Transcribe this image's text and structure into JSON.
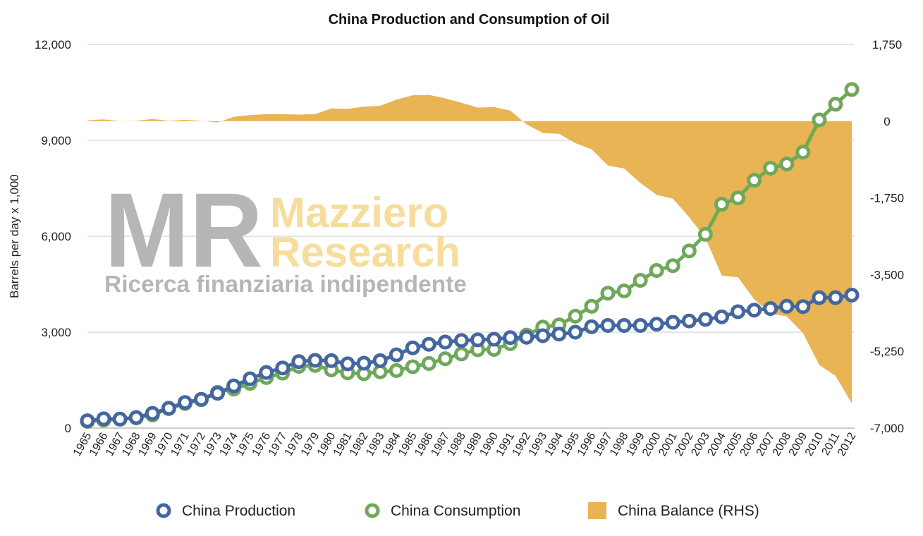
{
  "chart_data": {
    "type": "line",
    "title": "China Production and Consumption of Oil",
    "ylabel": "Barrels per day x 1,000",
    "ylim": [
      0,
      12000
    ],
    "y_ticks": [
      "0",
      "3,000",
      "6,000",
      "9,000",
      "12,000"
    ],
    "ylim_right": [
      -7000,
      1750
    ],
    "y2_ticks": [
      "-7,000",
      "-5,250",
      "-3,500",
      "-1,750",
      "0",
      "1,750"
    ],
    "categories": [
      "1965",
      "1966",
      "1967",
      "1968",
      "1969",
      "1970",
      "1971",
      "1972",
      "1973",
      "1974",
      "1975",
      "1976",
      "1977",
      "1978",
      "1979",
      "1980",
      "1981",
      "1982",
      "1983",
      "1984",
      "1985",
      "1986",
      "1987",
      "1988",
      "1989",
      "1990",
      "1991",
      "1992",
      "1993",
      "1994",
      "1995",
      "1996",
      "1997",
      "1998",
      "1999",
      "2000",
      "2001",
      "2002",
      "2003",
      "2004",
      "2005",
      "2006",
      "2007",
      "2008",
      "2009",
      "2010",
      "2011",
      "2012"
    ],
    "series": [
      {
        "name": "China Production",
        "type": "line",
        "axis": "left",
        "color": "#44679f",
        "values": [
          230,
          290,
          280,
          330,
          460,
          620,
          800,
          900,
          1090,
          1320,
          1540,
          1740,
          1880,
          2080,
          2120,
          2110,
          2010,
          2030,
          2110,
          2290,
          2510,
          2620,
          2690,
          2740,
          2760,
          2780,
          2830,
          2840,
          2890,
          2940,
          3000,
          3170,
          3210,
          3210,
          3210,
          3250,
          3310,
          3350,
          3400,
          3480,
          3640,
          3690,
          3740,
          3810,
          3800,
          4080,
          4080,
          4160
        ]
      },
      {
        "name": "China Consumption",
        "type": "line",
        "axis": "left",
        "color": "#6fa85a",
        "values": [
          210,
          250,
          280,
          320,
          410,
          610,
          770,
          890,
          1120,
          1220,
          1400,
          1580,
          1720,
          1930,
          1960,
          1820,
          1730,
          1700,
          1760,
          1800,
          1920,
          2020,
          2170,
          2320,
          2450,
          2460,
          2640,
          2910,
          3160,
          3230,
          3500,
          3810,
          4220,
          4290,
          4620,
          4930,
          5080,
          5540,
          6060,
          7000,
          7200,
          7750,
          8130,
          8260,
          8630,
          9640,
          10130,
          10590
        ]
      },
      {
        "name": "China Balance (RHS)",
        "type": "area",
        "axis": "right",
        "color": "#e8b454",
        "values": [
          20,
          40,
          0,
          10,
          50,
          10,
          30,
          10,
          -30,
          100,
          140,
          160,
          160,
          150,
          160,
          290,
          280,
          330,
          350,
          490,
          590,
          600,
          520,
          420,
          310,
          320,
          240,
          -70,
          -270,
          -290,
          -500,
          -640,
          -1010,
          -1080,
          -1410,
          -1680,
          -1770,
          -2190,
          -2660,
          -3520,
          -3560,
          -4060,
          -4390,
          -4450,
          -4830,
          -5560,
          -5810,
          -6430
        ]
      }
    ],
    "legend_position": "bottom",
    "grid": true
  },
  "watermark": {
    "letters": "MR",
    "line1": "Mazziero",
    "line2": "Research",
    "tagline": "Ricerca finanziaria indipendente"
  }
}
